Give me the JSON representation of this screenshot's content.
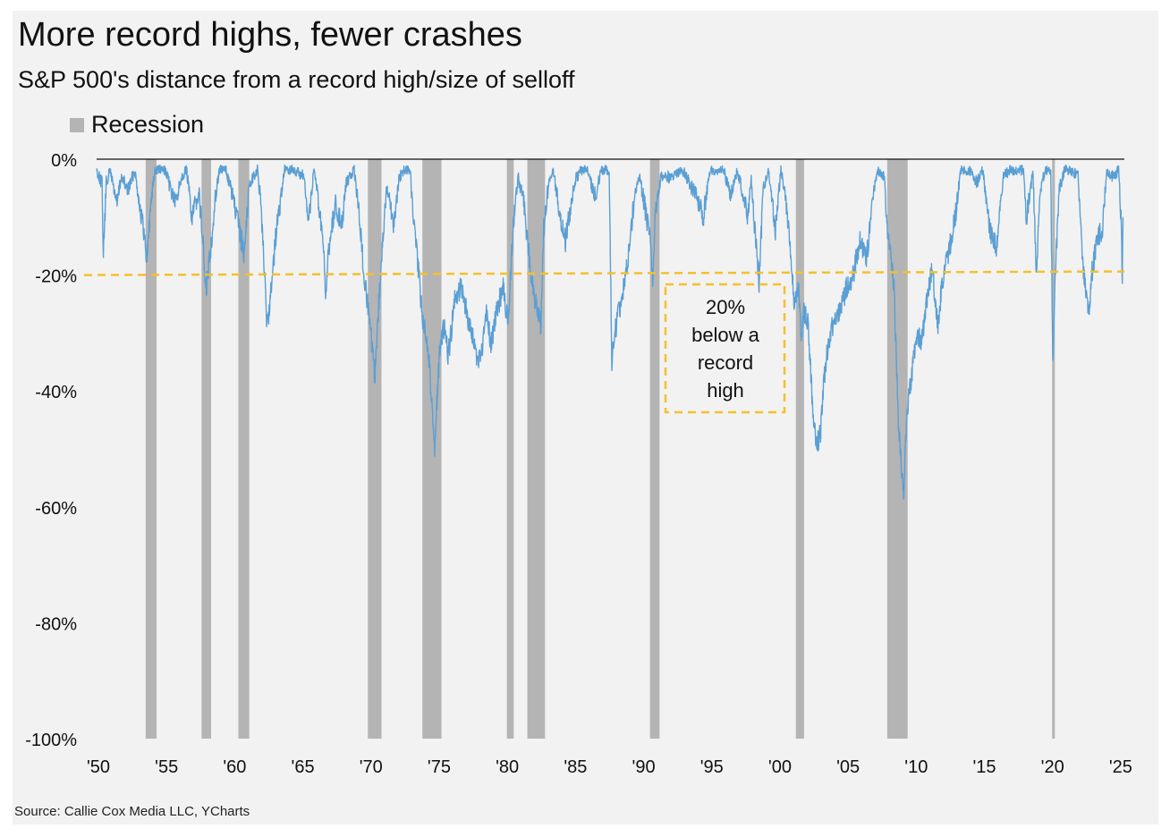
{
  "title": "More record highs, fewer crashes",
  "subtitle": "S&P 500's distance from a record high/size of selloff",
  "legend": {
    "recession_label": "Recession"
  },
  "source": "Source: Callie Cox Media LLC, YCharts",
  "colors": {
    "line": "#5a9fd4",
    "recession": "#b4b4b4",
    "threshold": "#f5c02c",
    "background": "#f2f2f2"
  },
  "chart_data": {
    "type": "line",
    "x_unit": "year",
    "xlim": [
      1950,
      2025.4
    ],
    "ylim": [
      -100,
      0
    ],
    "y_ticks": [
      0,
      -20,
      -40,
      -60,
      -80,
      -100
    ],
    "y_tick_labels": [
      "0%",
      "-20%",
      "-40%",
      "-60%",
      "-80%",
      "-100%"
    ],
    "x_ticks": [
      1950,
      1955,
      1960,
      1965,
      1970,
      1975,
      1980,
      1985,
      1990,
      1995,
      2000,
      2005,
      2010,
      2015,
      2020,
      2025
    ],
    "x_tick_labels": [
      "'50",
      "'55",
      "'60",
      "'65",
      "'70",
      "'75",
      "'80",
      "'85",
      "'90",
      "'95",
      "'00",
      "'05",
      "'10",
      "'15",
      "'20",
      "'25"
    ],
    "grid": false,
    "legend_position": "top-left",
    "threshold": {
      "value": -20
    },
    "annotation": {
      "text": [
        "20%",
        "below a",
        "record",
        "high"
      ]
    },
    "recessions": [
      [
        1953.6,
        1954.4
      ],
      [
        1957.7,
        1958.4
      ],
      [
        1960.4,
        1961.2
      ],
      [
        1969.9,
        1970.9
      ],
      [
        1973.9,
        1975.3
      ],
      [
        1980.1,
        1980.6
      ],
      [
        1981.6,
        1982.9
      ],
      [
        1990.6,
        1991.3
      ],
      [
        2001.3,
        2001.9
      ],
      [
        2008.0,
        2009.5
      ],
      [
        2020.1,
        2020.3
      ]
    ],
    "series": [
      {
        "values": [
          [
            1950.0,
            -1
          ],
          [
            1950.4,
            -3
          ],
          [
            1950.5,
            -14
          ],
          [
            1950.7,
            -3
          ],
          [
            1951.0,
            -1
          ],
          [
            1951.5,
            -6
          ],
          [
            1951.8,
            -2
          ],
          [
            1952.3,
            -4
          ],
          [
            1952.8,
            -1
          ],
          [
            1953.3,
            -8
          ],
          [
            1953.7,
            -15
          ],
          [
            1954.0,
            -5
          ],
          [
            1954.3,
            -1
          ],
          [
            1955.0,
            -1
          ],
          [
            1955.8,
            -6
          ],
          [
            1956.2,
            -2
          ],
          [
            1956.6,
            -1
          ],
          [
            1957.0,
            -8
          ],
          [
            1957.5,
            -4
          ],
          [
            1957.8,
            -12
          ],
          [
            1958.0,
            -21
          ],
          [
            1958.3,
            -15
          ],
          [
            1958.7,
            -5
          ],
          [
            1959.0,
            -1
          ],
          [
            1959.5,
            -1
          ],
          [
            1960.0,
            -5
          ],
          [
            1960.8,
            -14
          ],
          [
            1961.2,
            -3
          ],
          [
            1961.8,
            -1
          ],
          [
            1962.0,
            -5
          ],
          [
            1962.4,
            -20
          ],
          [
            1962.5,
            -28
          ],
          [
            1962.8,
            -20
          ],
          [
            1963.2,
            -10
          ],
          [
            1963.8,
            -1
          ],
          [
            1964.5,
            -1
          ],
          [
            1965.2,
            -2
          ],
          [
            1965.5,
            -9
          ],
          [
            1965.9,
            -2
          ],
          [
            1966.0,
            -1
          ],
          [
            1966.6,
            -12
          ],
          [
            1966.8,
            -22
          ],
          [
            1967.0,
            -14
          ],
          [
            1967.5,
            -6
          ],
          [
            1968.0,
            -9
          ],
          [
            1968.3,
            -3
          ],
          [
            1968.9,
            -1
          ],
          [
            1969.3,
            -8
          ],
          [
            1969.6,
            -18
          ],
          [
            1970.0,
            -25
          ],
          [
            1970.4,
            -36
          ],
          [
            1970.6,
            -27
          ],
          [
            1970.9,
            -15
          ],
          [
            1971.3,
            -3
          ],
          [
            1971.8,
            -9
          ],
          [
            1972.2,
            -2
          ],
          [
            1972.6,
            -1
          ],
          [
            1973.0,
            -1
          ],
          [
            1973.3,
            -10
          ],
          [
            1973.6,
            -17
          ],
          [
            1973.9,
            -25
          ],
          [
            1974.3,
            -30
          ],
          [
            1974.6,
            -40
          ],
          [
            1974.8,
            -48
          ],
          [
            1975.0,
            -38
          ],
          [
            1975.2,
            -30
          ],
          [
            1975.5,
            -27
          ],
          [
            1975.8,
            -32
          ],
          [
            1976.3,
            -22
          ],
          [
            1976.7,
            -20
          ],
          [
            1977.0,
            -23
          ],
          [
            1977.5,
            -28
          ],
          [
            1977.9,
            -32
          ],
          [
            1978.2,
            -33
          ],
          [
            1978.6,
            -24
          ],
          [
            1978.9,
            -30
          ],
          [
            1979.3,
            -25
          ],
          [
            1979.8,
            -20
          ],
          [
            1980.2,
            -26
          ],
          [
            1980.6,
            -8
          ],
          [
            1980.9,
            -2
          ],
          [
            1981.3,
            -5
          ],
          [
            1981.7,
            -14
          ],
          [
            1982.0,
            -20
          ],
          [
            1982.3,
            -24
          ],
          [
            1982.6,
            -27
          ],
          [
            1982.8,
            -10
          ],
          [
            1983.2,
            -2
          ],
          [
            1983.5,
            -1
          ],
          [
            1984.0,
            -8
          ],
          [
            1984.4,
            -12
          ],
          [
            1984.8,
            -6
          ],
          [
            1985.2,
            -2
          ],
          [
            1985.6,
            -1
          ],
          [
            1986.0,
            -1
          ],
          [
            1986.6,
            -5
          ],
          [
            1987.0,
            -1
          ],
          [
            1987.6,
            -1
          ],
          [
            1987.8,
            -33
          ],
          [
            1988.0,
            -28
          ],
          [
            1988.5,
            -22
          ],
          [
            1989.0,
            -15
          ],
          [
            1989.5,
            -4
          ],
          [
            1989.8,
            -2
          ],
          [
            1990.2,
            -6
          ],
          [
            1990.6,
            -12
          ],
          [
            1990.8,
            -19
          ],
          [
            1991.0,
            -7
          ],
          [
            1991.4,
            -2
          ],
          [
            1992.0,
            -2
          ],
          [
            1993.0,
            -1
          ],
          [
            1994.0,
            -5
          ],
          [
            1994.5,
            -8
          ],
          [
            1995.0,
            -1
          ],
          [
            1996.0,
            -1
          ],
          [
            1996.5,
            -5
          ],
          [
            1997.0,
            -1
          ],
          [
            1997.8,
            -8
          ],
          [
            1998.0,
            -2
          ],
          [
            1998.6,
            -19
          ],
          [
            1998.9,
            -4
          ],
          [
            1999.3,
            -1
          ],
          [
            1999.8,
            -10
          ],
          [
            2000.2,
            -1
          ],
          [
            2000.6,
            -6
          ],
          [
            2000.9,
            -14
          ],
          [
            2001.2,
            -23
          ],
          [
            2001.5,
            -20
          ],
          [
            2001.7,
            -30
          ],
          [
            2001.9,
            -24
          ],
          [
            2002.2,
            -26
          ],
          [
            2002.5,
            -40
          ],
          [
            2002.8,
            -48
          ],
          [
            2003.1,
            -45
          ],
          [
            2003.4,
            -35
          ],
          [
            2003.8,
            -28
          ],
          [
            2004.2,
            -25
          ],
          [
            2004.6,
            -24
          ],
          [
            2005.0,
            -20
          ],
          [
            2005.5,
            -18
          ],
          [
            2006.0,
            -12
          ],
          [
            2006.5,
            -15
          ],
          [
            2006.9,
            -6
          ],
          [
            2007.3,
            -1
          ],
          [
            2007.8,
            -2
          ],
          [
            2008.0,
            -10
          ],
          [
            2008.5,
            -20
          ],
          [
            2008.8,
            -42
          ],
          [
            2009.0,
            -50
          ],
          [
            2009.2,
            -56
          ],
          [
            2009.4,
            -43
          ],
          [
            2009.8,
            -35
          ],
          [
            2010.2,
            -28
          ],
          [
            2010.5,
            -30
          ],
          [
            2010.9,
            -22
          ],
          [
            2011.3,
            -17
          ],
          [
            2011.7,
            -27
          ],
          [
            2012.0,
            -20
          ],
          [
            2012.5,
            -14
          ],
          [
            2013.0,
            -8
          ],
          [
            2013.4,
            -1
          ],
          [
            2014.0,
            -1
          ],
          [
            2014.6,
            -3
          ],
          [
            2015.0,
            -1
          ],
          [
            2015.6,
            -11
          ],
          [
            2016.0,
            -13
          ],
          [
            2016.5,
            -2
          ],
          [
            2017.0,
            -1
          ],
          [
            2018.0,
            -1
          ],
          [
            2018.2,
            -8
          ],
          [
            2018.7,
            -1
          ],
          [
            2018.95,
            -19
          ],
          [
            2019.2,
            -4
          ],
          [
            2019.6,
            -1
          ],
          [
            2020.0,
            -1
          ],
          [
            2020.15,
            -34
          ],
          [
            2020.3,
            -20
          ],
          [
            2020.6,
            -4
          ],
          [
            2021.0,
            -1
          ],
          [
            2021.5,
            -1
          ],
          [
            2022.0,
            -2
          ],
          [
            2022.4,
            -18
          ],
          [
            2022.7,
            -22
          ],
          [
            2022.8,
            -25
          ],
          [
            2023.0,
            -18
          ],
          [
            2023.4,
            -12
          ],
          [
            2023.8,
            -10
          ],
          [
            2024.1,
            -1
          ],
          [
            2024.6,
            -2
          ],
          [
            2025.0,
            -1
          ],
          [
            2025.15,
            -8
          ],
          [
            2025.25,
            -18
          ],
          [
            2025.3,
            -10
          ]
        ]
      }
    ]
  }
}
